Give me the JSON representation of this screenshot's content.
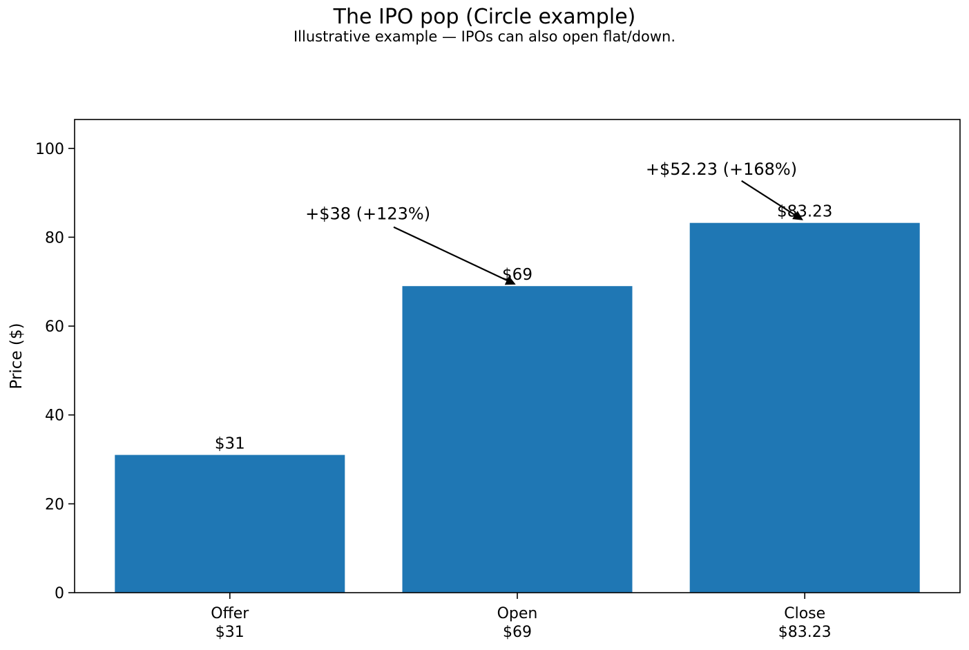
{
  "chart_data": {
    "type": "bar",
    "title": "The IPO pop (Circle example)",
    "subtitle": "Illustrative example — IPOs can also open flat/down.",
    "xlabel": "",
    "ylabel": "Price ($)",
    "categories": [
      "Offer",
      "Open",
      "Close"
    ],
    "values": [
      31,
      69,
      83.23
    ],
    "bar_labels": [
      "$31",
      "$69",
      "$83.23"
    ],
    "x_tick_labels": [
      {
        "line1": "Offer",
        "line2": "$31"
      },
      {
        "line1": "Open",
        "line2": "$69"
      },
      {
        "line1": "Close",
        "line2": "$83.23"
      }
    ],
    "yticks": [
      0,
      20,
      40,
      60,
      80,
      100
    ],
    "ylim": [
      0,
      106.5
    ],
    "xlim": [
      -0.54,
      2.54
    ],
    "bar_width": 0.8,
    "bar_color": "#1f77b4",
    "axis_color": "#000000",
    "text_color": "#000000",
    "background_color": "#ffffff",
    "grid": false,
    "legend": null,
    "annotations": [
      {
        "text": "+$38 (+123%)",
        "text_x": 0.48,
        "text_y": 84.0,
        "arrow_from_x": 0.57,
        "arrow_from_y": 82.3,
        "arrow_to_x": 0.99,
        "arrow_to_y": 69.5
      },
      {
        "text": "+$52.23 (+168%)",
        "text_x": 1.71,
        "text_y": 94.1,
        "arrow_from_x": 1.78,
        "arrow_from_y": 92.7,
        "arrow_to_x": 1.99,
        "arrow_to_y": 84.0
      }
    ]
  }
}
